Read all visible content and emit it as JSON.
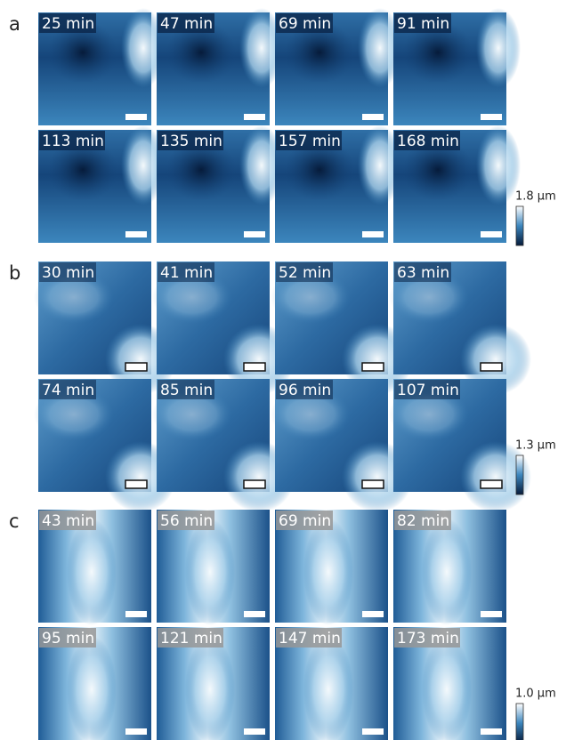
{
  "panels": [
    {
      "label": "a",
      "frames": [
        "25 min",
        "47 min",
        "69 min",
        "91 min",
        "113 min",
        "135 min",
        "157 min",
        "168 min"
      ],
      "colorbar_label": "1.8 µm"
    },
    {
      "label": "b",
      "frames": [
        "30 min",
        "41 min",
        "52 min",
        "63 min",
        "74 min",
        "85 min",
        "96 min",
        "107 min"
      ],
      "colorbar_label": "1.3 µm"
    },
    {
      "label": "c",
      "frames": [
        "43 min",
        "56 min",
        "69 min",
        "82 min",
        "95 min",
        "121 min",
        "147 min",
        "173 min"
      ],
      "colorbar_label": "1.0 µm"
    }
  ]
}
